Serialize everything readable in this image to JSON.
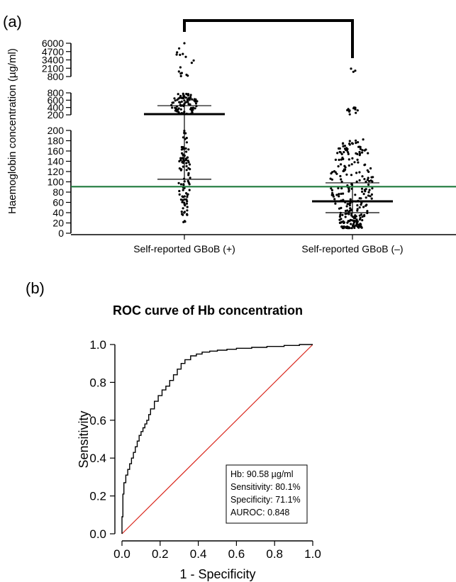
{
  "panel_a": {
    "label": "(a)",
    "chart_data": {
      "type": "scatter",
      "ylabel": "Haemoglobin concentration (µg/ml)",
      "categories": [
        "Self-reported GBoB (+)",
        "Self-reported GBoB (–)"
      ],
      "yaxis_segments": [
        {
          "range": [
            0,
            200
          ],
          "ticks": [
            "0",
            "20",
            "40",
            "60",
            "80",
            "100",
            "120",
            "140",
            "160",
            "180",
            "200"
          ]
        },
        {
          "range": [
            200,
            800
          ],
          "ticks": [
            "200",
            "400",
            "600",
            "800"
          ]
        },
        {
          "range": [
            800,
            6000
          ],
          "ticks": [
            "800",
            "2100",
            "3400",
            "4700",
            "6000"
          ]
        }
      ],
      "threshold_line": {
        "value": 90.58,
        "color": "#1e7a3c"
      },
      "significance_bracket": true,
      "groups": [
        {
          "name": "Self-reported GBoB (+)",
          "median": 220,
          "q1": 105,
          "q3": 450,
          "n_approx": 190,
          "value_ranges": [
            [
              20,
              200
            ],
            [
              210,
              780
            ],
            [
              800,
              6000
            ]
          ]
        },
        {
          "name": "Self-reported GBoB (–)",
          "median": 62,
          "q1": 40,
          "q3": 98,
          "n_approx": 300,
          "value_ranges": [
            [
              0,
              195
            ],
            [
              210,
              400
            ],
            [
              800,
              2100
            ]
          ]
        }
      ]
    }
  },
  "panel_b": {
    "label": "(b)",
    "chart_data": {
      "type": "line",
      "title": "ROC curve of Hb concentration",
      "xlabel": "1 - Specificity",
      "ylabel": "Sensitivity",
      "xlim": [
        0,
        1
      ],
      "ylim": [
        0,
        1
      ],
      "xticks": [
        "0.0",
        "0.2",
        "0.4",
        "0.6",
        "0.8",
        "1.0"
      ],
      "yticks": [
        "0.0",
        "0.2",
        "0.4",
        "0.6",
        "0.8",
        "1.0"
      ],
      "series": [
        {
          "color": "#000000",
          "x": [
            0,
            0,
            0.005,
            0.005,
            0.01,
            0.01,
            0.02,
            0.03,
            0.04,
            0.05,
            0.06,
            0.07,
            0.08,
            0.09,
            0.1,
            0.11,
            0.12,
            0.13,
            0.14,
            0.15,
            0.17,
            0.19,
            0.21,
            0.23,
            0.25,
            0.27,
            0.29,
            0.31,
            0.33,
            0.36,
            0.39,
            0.42,
            0.46,
            0.5,
            0.55,
            0.6,
            0.68,
            0.76,
            0.85,
            0.93,
            1.0
          ],
          "y": [
            0,
            0.08,
            0.09,
            0.2,
            0.21,
            0.24,
            0.27,
            0.31,
            0.34,
            0.37,
            0.4,
            0.43,
            0.46,
            0.49,
            0.52,
            0.54,
            0.56,
            0.58,
            0.6,
            0.63,
            0.66,
            0.7,
            0.73,
            0.76,
            0.78,
            0.81,
            0.84,
            0.87,
            0.9,
            0.92,
            0.94,
            0.95,
            0.96,
            0.965,
            0.97,
            0.975,
            0.98,
            0.985,
            0.99,
            0.995,
            1.0
          ]
        },
        {
          "color": "#d9261c",
          "x": [
            0,
            1
          ],
          "y": [
            0,
            1
          ]
        }
      ],
      "annotation": [
        "Hb: 90.58 µg/ml",
        "Sensitivity: 80.1%",
        "Specificity: 71.1%",
        "AUROC: 0.848"
      ]
    }
  }
}
